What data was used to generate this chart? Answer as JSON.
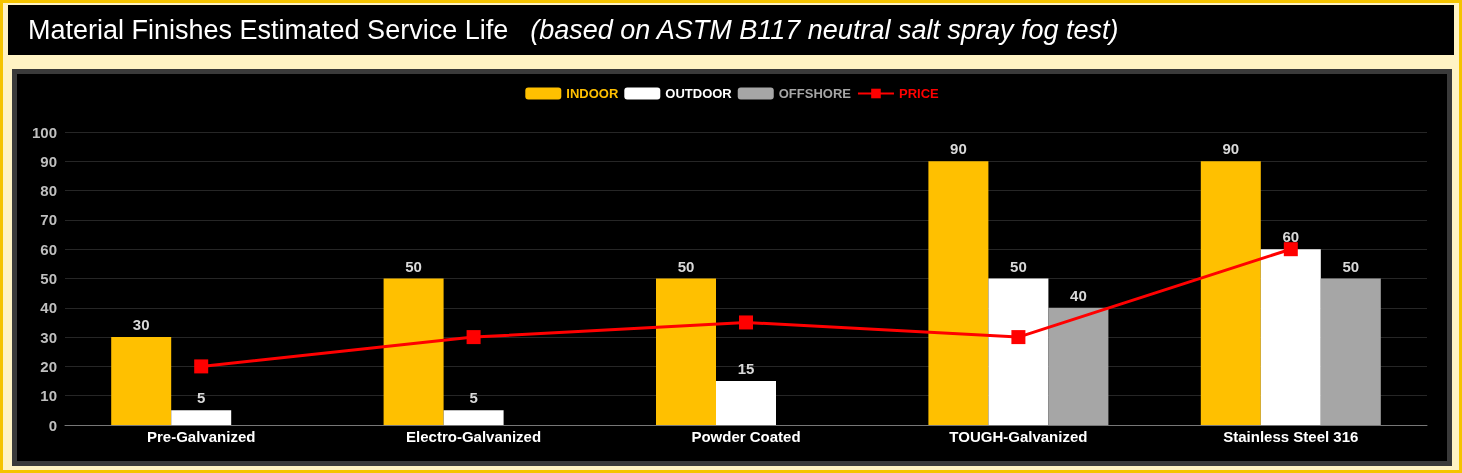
{
  "chart_data": {
    "type": "bar",
    "title": "Material Finishes Estimated Service Life",
    "subtitle": "(based on ASTM B117 neutral salt spray fog test)",
    "categories": [
      "Pre-Galvanized",
      "Electro-Galvanized",
      "Powder Coated",
      "TOUGH-Galvanized",
      "Stainless Steel 316"
    ],
    "series": [
      {
        "name": "INDOOR",
        "color": "#ffc000",
        "values": [
          30,
          50,
          50,
          90,
          90
        ],
        "value_labels": [
          "30",
          "50",
          "50",
          "90",
          "90"
        ]
      },
      {
        "name": "OUTDOOR",
        "color": "#ffffff",
        "values": [
          5,
          5,
          15,
          50,
          60
        ],
        "value_labels": [
          "5",
          "5",
          "15",
          "50",
          "60"
        ]
      },
      {
        "name": "OFFSHORE",
        "color": "#a6a6a6",
        "values": [
          null,
          null,
          null,
          40,
          50
        ],
        "value_labels": [
          null,
          null,
          null,
          "40",
          "50"
        ]
      },
      {
        "name": "PRICE",
        "type": "line",
        "color": "#ff0000",
        "values": [
          20,
          30,
          35,
          30,
          60
        ]
      }
    ],
    "ylim": [
      0,
      100
    ],
    "yticks": [
      0,
      10,
      20,
      30,
      40,
      50,
      60,
      70,
      80,
      90,
      100
    ],
    "grid": "y",
    "legend": "top",
    "marker": "square",
    "line_style": "solid"
  }
}
